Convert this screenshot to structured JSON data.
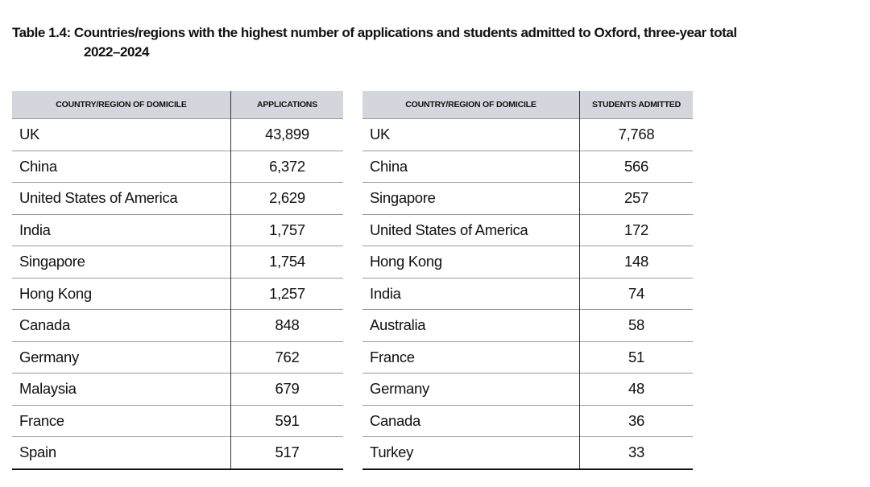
{
  "title": {
    "lines": [
      "Table 1.4: Countries/regions with the highest number of applications and students admitted to Oxford, three-year total",
      "2022–2024"
    ]
  },
  "tables": [
    {
      "header": [
        "COUNTRY/REGION OF DOMICILE",
        "APPLICATIONS"
      ],
      "rows": [
        [
          "UK",
          "43,899"
        ],
        [
          "China",
          "6,372"
        ],
        [
          "United States of America",
          "2,629"
        ],
        [
          "India",
          "1,757"
        ],
        [
          "Singapore",
          "1,754"
        ],
        [
          "Hong Kong",
          "1,257"
        ],
        [
          "Canada",
          "848"
        ],
        [
          "Germany",
          "762"
        ],
        [
          "Malaysia",
          "679"
        ],
        [
          "France",
          "591"
        ],
        [
          "Spain",
          "517"
        ]
      ]
    },
    {
      "header": [
        "COUNTRY/REGION OF DOMICILE",
        "STUDENTS ADMITTED"
      ],
      "rows": [
        [
          "UK",
          "7,768"
        ],
        [
          "China",
          "566"
        ],
        [
          "Singapore",
          "257"
        ],
        [
          "United States of America",
          "172"
        ],
        [
          "Hong Kong",
          "148"
        ],
        [
          "India",
          "74"
        ],
        [
          "Australia",
          "58"
        ],
        [
          "France",
          "51"
        ],
        [
          "Germany",
          "48"
        ],
        [
          "Canada",
          "36"
        ],
        [
          "Turkey",
          "33"
        ]
      ]
    }
  ]
}
